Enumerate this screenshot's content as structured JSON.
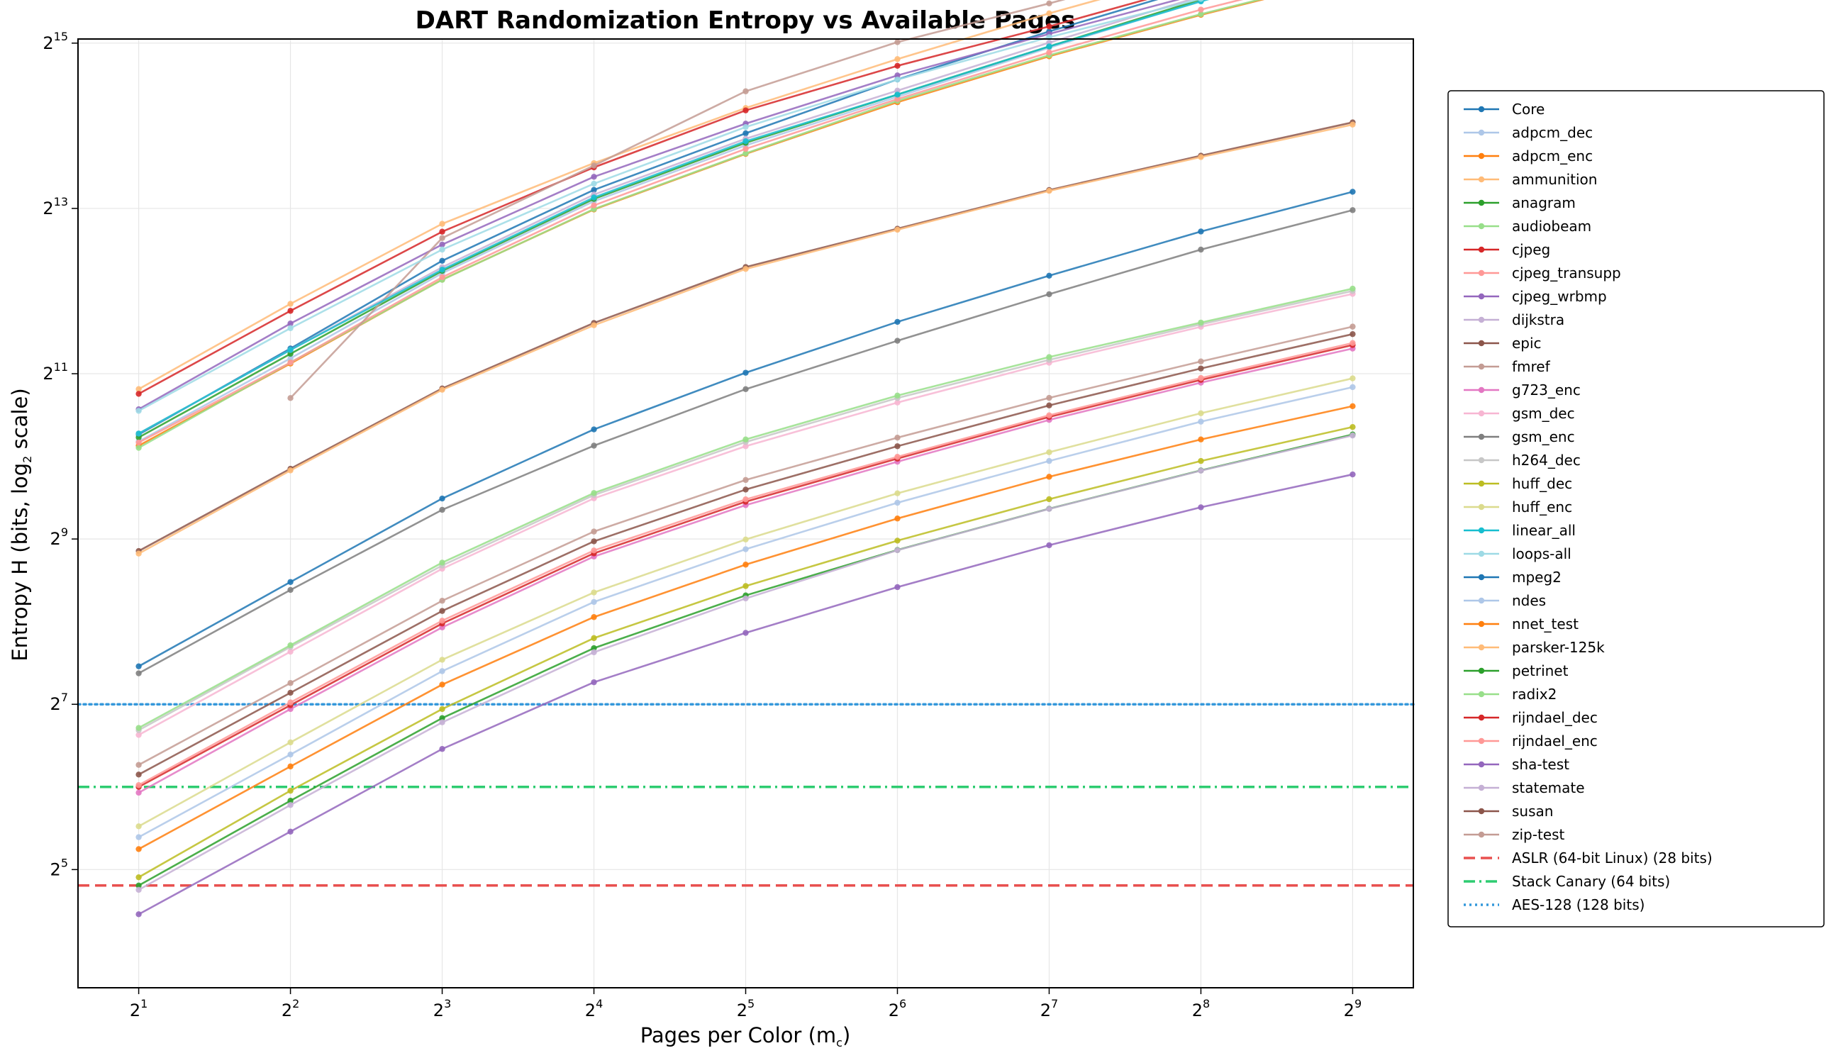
{
  "chart_data": {
    "type": "line",
    "title": "DART Randomization Entropy vs Available Pages",
    "xlabel_main": "Pages per Color (m",
    "xlabel_sub": "c",
    "xlabel_end": ")",
    "ylabel_main": "Entropy H (bits, log",
    "ylabel_sub": "2",
    "ylabel_end": " scale)",
    "x_scale": "log2",
    "y_scale": "log2",
    "x": [
      2,
      4,
      8,
      16,
      32,
      64,
      128,
      256,
      512
    ],
    "x_tick_base": "2",
    "x_tick_exponents": [
      "1",
      "2",
      "3",
      "4",
      "5",
      "6",
      "7",
      "8",
      "9"
    ],
    "y_tick_base": "2",
    "y_tick_exponents": [
      "5",
      "7",
      "9",
      "11",
      "13",
      "15"
    ],
    "xlim_log2": [
      0.6,
      9.4
    ],
    "ylim_log2": [
      3.57,
      15.05
    ],
    "grid": true,
    "legend_placement": "right-outside",
    "series": [
      {
        "name": "Core",
        "color": "#1f77b4",
        "values": [
          1230,
          2530,
          5280,
          9570,
          15380,
          24160,
          36140,
          52750,
          73800
        ]
      },
      {
        "name": "adpcm_dec",
        "color": "#aec7e8",
        "values": [
          1160,
          2330,
          4760,
          8700,
          13900,
          20890,
          31510,
          46770,
          65000
        ]
      },
      {
        "name": "adpcm_enc",
        "color": "#ff7f0e",
        "values": [
          1120,
          2230,
          4510,
          8120,
          12940,
          19970,
          29340,
          41540,
          56990
        ]
      },
      {
        "name": "ammunition",
        "color": "#ffbb78",
        "values": [
          1800,
          3680,
          7200,
          11980,
          19020,
          28660,
          42060,
          59860,
          82720
        ]
      },
      {
        "name": "anagram",
        "color": "#2ca02c",
        "values": [
          1200,
          2420,
          4850,
          8870,
          14200,
          21290,
          31880,
          47260,
          66710
        ]
      },
      {
        "name": "audiobeam",
        "color": "#98df8a",
        "values": [
          1100,
          2250,
          4500,
          8150,
          13000,
          20200,
          29600,
          41800,
          57300
        ]
      },
      {
        "name": "cjpeg",
        "color": "#d62728",
        "values": [
          1730,
          3470,
          6740,
          11560,
          18640,
          27090,
          37700,
          53700,
          74400
        ]
      },
      {
        "name": "cjpeg_transupp",
        "color": "#ff9896",
        "values": [
          1150,
          2250,
          4600,
          8400,
          13500,
          20500,
          30300,
          43400,
          59600
        ]
      },
      {
        "name": "cjpeg_wrbmp",
        "color": "#9467bd",
        "values": [
          1520,
          3120,
          6050,
          10680,
          16680,
          25000,
          35400,
          49700,
          67900
        ]
      },
      {
        "name": "dijkstra",
        "color": "#c5b0d5",
        "values": [
          1240,
          2500,
          5000,
          9200,
          14700,
          22000,
          32900,
          48500,
          68200
        ]
      },
      {
        "name": "epic",
        "color": "#8c564b",
        "values": [
          463,
          923,
          1810,
          3135,
          5010,
          6910,
          9560,
          12750,
          16860
        ]
      },
      {
        "name": "fmref",
        "color": "#c49c94",
        "values": [
          null,
          1670,
          6390,
          11740,
          21880,
          33050,
          45720,
          64260,
          84300
        ]
      },
      {
        "name": "g723_enc",
        "color": "#e377c2",
        "values": [
          61,
          123,
          244,
          442,
          680,
          979,
          1390,
          1900,
          2530
        ]
      },
      {
        "name": "gsm_dec",
        "color": "#f7b6d2",
        "values": [
          99,
          199,
          399,
          720,
          1115,
          1608,
          2246,
          3035,
          4000
        ]
      },
      {
        "name": "gsm_enc",
        "color": "#7f7f7f",
        "values": [
          166,
          334,
          654,
          1120,
          1799,
          2700,
          3990,
          5800,
          8075
        ]
      },
      {
        "name": "h264_dec",
        "color": "#c7c7c7",
        "values": [
          103,
          207,
          410,
          740,
          1155,
          1670,
          2300,
          3100,
          4100
        ]
      },
      {
        "name": "huff_dec",
        "color": "#bcbd22",
        "values": [
          30,
          62,
          123,
          223,
          345,
          505,
          715,
          985,
          1310
        ]
      },
      {
        "name": "huff_enc",
        "color": "#dbdb8d",
        "values": [
          46,
          93,
          186,
          327,
          510,
          751,
          1060,
          1470,
          1970
        ]
      },
      {
        "name": "linear_all",
        "color": "#17becf",
        "values": [
          1240,
          2500,
          4900,
          8980,
          14390,
          21280,
          31870,
          46500,
          66500
        ]
      },
      {
        "name": "loops-all",
        "color": "#9edae5",
        "values": [
          1500,
          3000,
          5800,
          10080,
          16210,
          24130,
          34430,
          47500,
          63800
        ]
      },
      {
        "name": "mpeg2",
        "color": "#1f77b4",
        "values": [
          176,
          357,
          719,
          1284,
          2065,
          3163,
          4660,
          6750,
          9420
        ]
      },
      {
        "name": "ndes",
        "color": "#aec7e8",
        "values": [
          42,
          84,
          169,
          302,
          470,
          694,
          985,
          1370,
          1830
        ]
      },
      {
        "name": "nnet_test",
        "color": "#ff7f0e",
        "values": [
          38,
          76,
          151,
          266,
          413,
          608,
          863,
          1180,
          1560
        ]
      },
      {
        "name": "parsker-125k",
        "color": "#ffbb78",
        "values": [
          453,
          910,
          1790,
          3075,
          4930,
          6850,
          9490,
          12600,
          16550
        ]
      },
      {
        "name": "petrinet",
        "color": "#2ca02c",
        "values": [
          28,
          57,
          114,
          205,
          319,
          467,
          660,
          910,
          1230
        ]
      },
      {
        "name": "radix2",
        "color": "#98df8a",
        "values": [
          105,
          210,
          420,
          753,
          1180,
          1705,
          2355,
          3145,
          4180
        ]
      },
      {
        "name": "rijndael_dec",
        "color": "#d62728",
        "values": [
          64,
          127,
          252,
          454,
          700,
          1005,
          1425,
          1945,
          2605
        ]
      },
      {
        "name": "rijndael_enc",
        "color": "#ff9896",
        "values": [
          65,
          130,
          258,
          465,
          714,
          1020,
          1445,
          1975,
          2650
        ]
      },
      {
        "name": "sha-test",
        "color": "#9467bd",
        "values": [
          22,
          44,
          88,
          154,
          233,
          342,
          486,
          668,
          880
        ]
      },
      {
        "name": "statemate",
        "color": "#c5b0d5",
        "values": [
          27,
          55,
          110,
          198,
          311,
          466,
          659,
          908,
          1220
        ]
      },
      {
        "name": "susan",
        "color": "#8c564b",
        "values": [
          71,
          141,
          280,
          502,
          775,
          1115,
          1570,
          2140,
          2855
        ]
      },
      {
        "name": "zip-test",
        "color": "#c49c94",
        "values": [
          77,
          153,
          305,
          545,
          840,
          1198,
          1672,
          2270,
          3040
        ]
      },
      {
        "name": "ASLR (64-bit Linux) (28 bits)",
        "color": "#e8504f",
        "hline": 28,
        "style": "dashed"
      },
      {
        "name": "Stack Canary (64 bits)",
        "color": "#2ecc71",
        "hline": 64,
        "style": "dashdot"
      },
      {
        "name": "AES-128 (128 bits)",
        "color": "#3498db",
        "hline": 128,
        "style": "dotted"
      }
    ]
  }
}
